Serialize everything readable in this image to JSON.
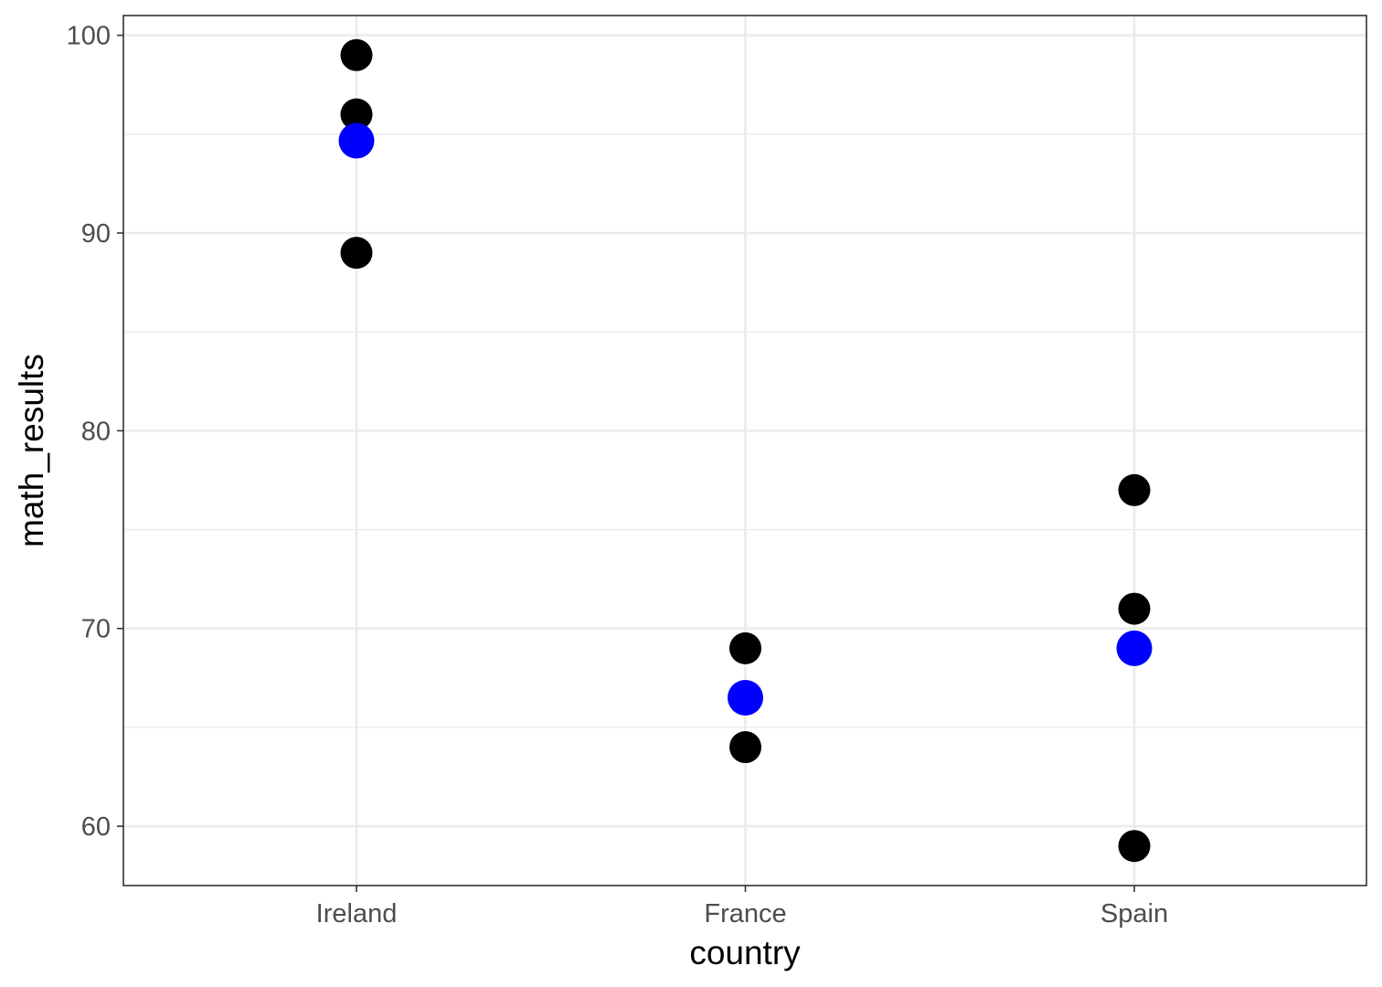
{
  "chart_data": {
    "type": "scatter",
    "title": "",
    "xlabel": "country",
    "ylabel": "math_results",
    "categories": [
      "Ireland",
      "France",
      "Spain"
    ],
    "ylim": [
      57,
      101
    ],
    "yticks": [
      60,
      70,
      80,
      90,
      100
    ],
    "grid": true,
    "series": [
      {
        "color": "#000000",
        "points": [
          {
            "x": "Ireland",
            "y": 99
          },
          {
            "x": "Ireland",
            "y": 96
          },
          {
            "x": "Ireland",
            "y": 89
          },
          {
            "x": "France",
            "y": 69
          },
          {
            "x": "France",
            "y": 64
          },
          {
            "x": "Spain",
            "y": 77
          },
          {
            "x": "Spain",
            "y": 71
          },
          {
            "x": "Spain",
            "y": 59
          }
        ]
      },
      {
        "color": "#0000ff",
        "points": [
          {
            "x": "Ireland",
            "y": 94.67
          },
          {
            "x": "France",
            "y": 66.5
          },
          {
            "x": "Spain",
            "y": 69
          }
        ]
      }
    ]
  }
}
